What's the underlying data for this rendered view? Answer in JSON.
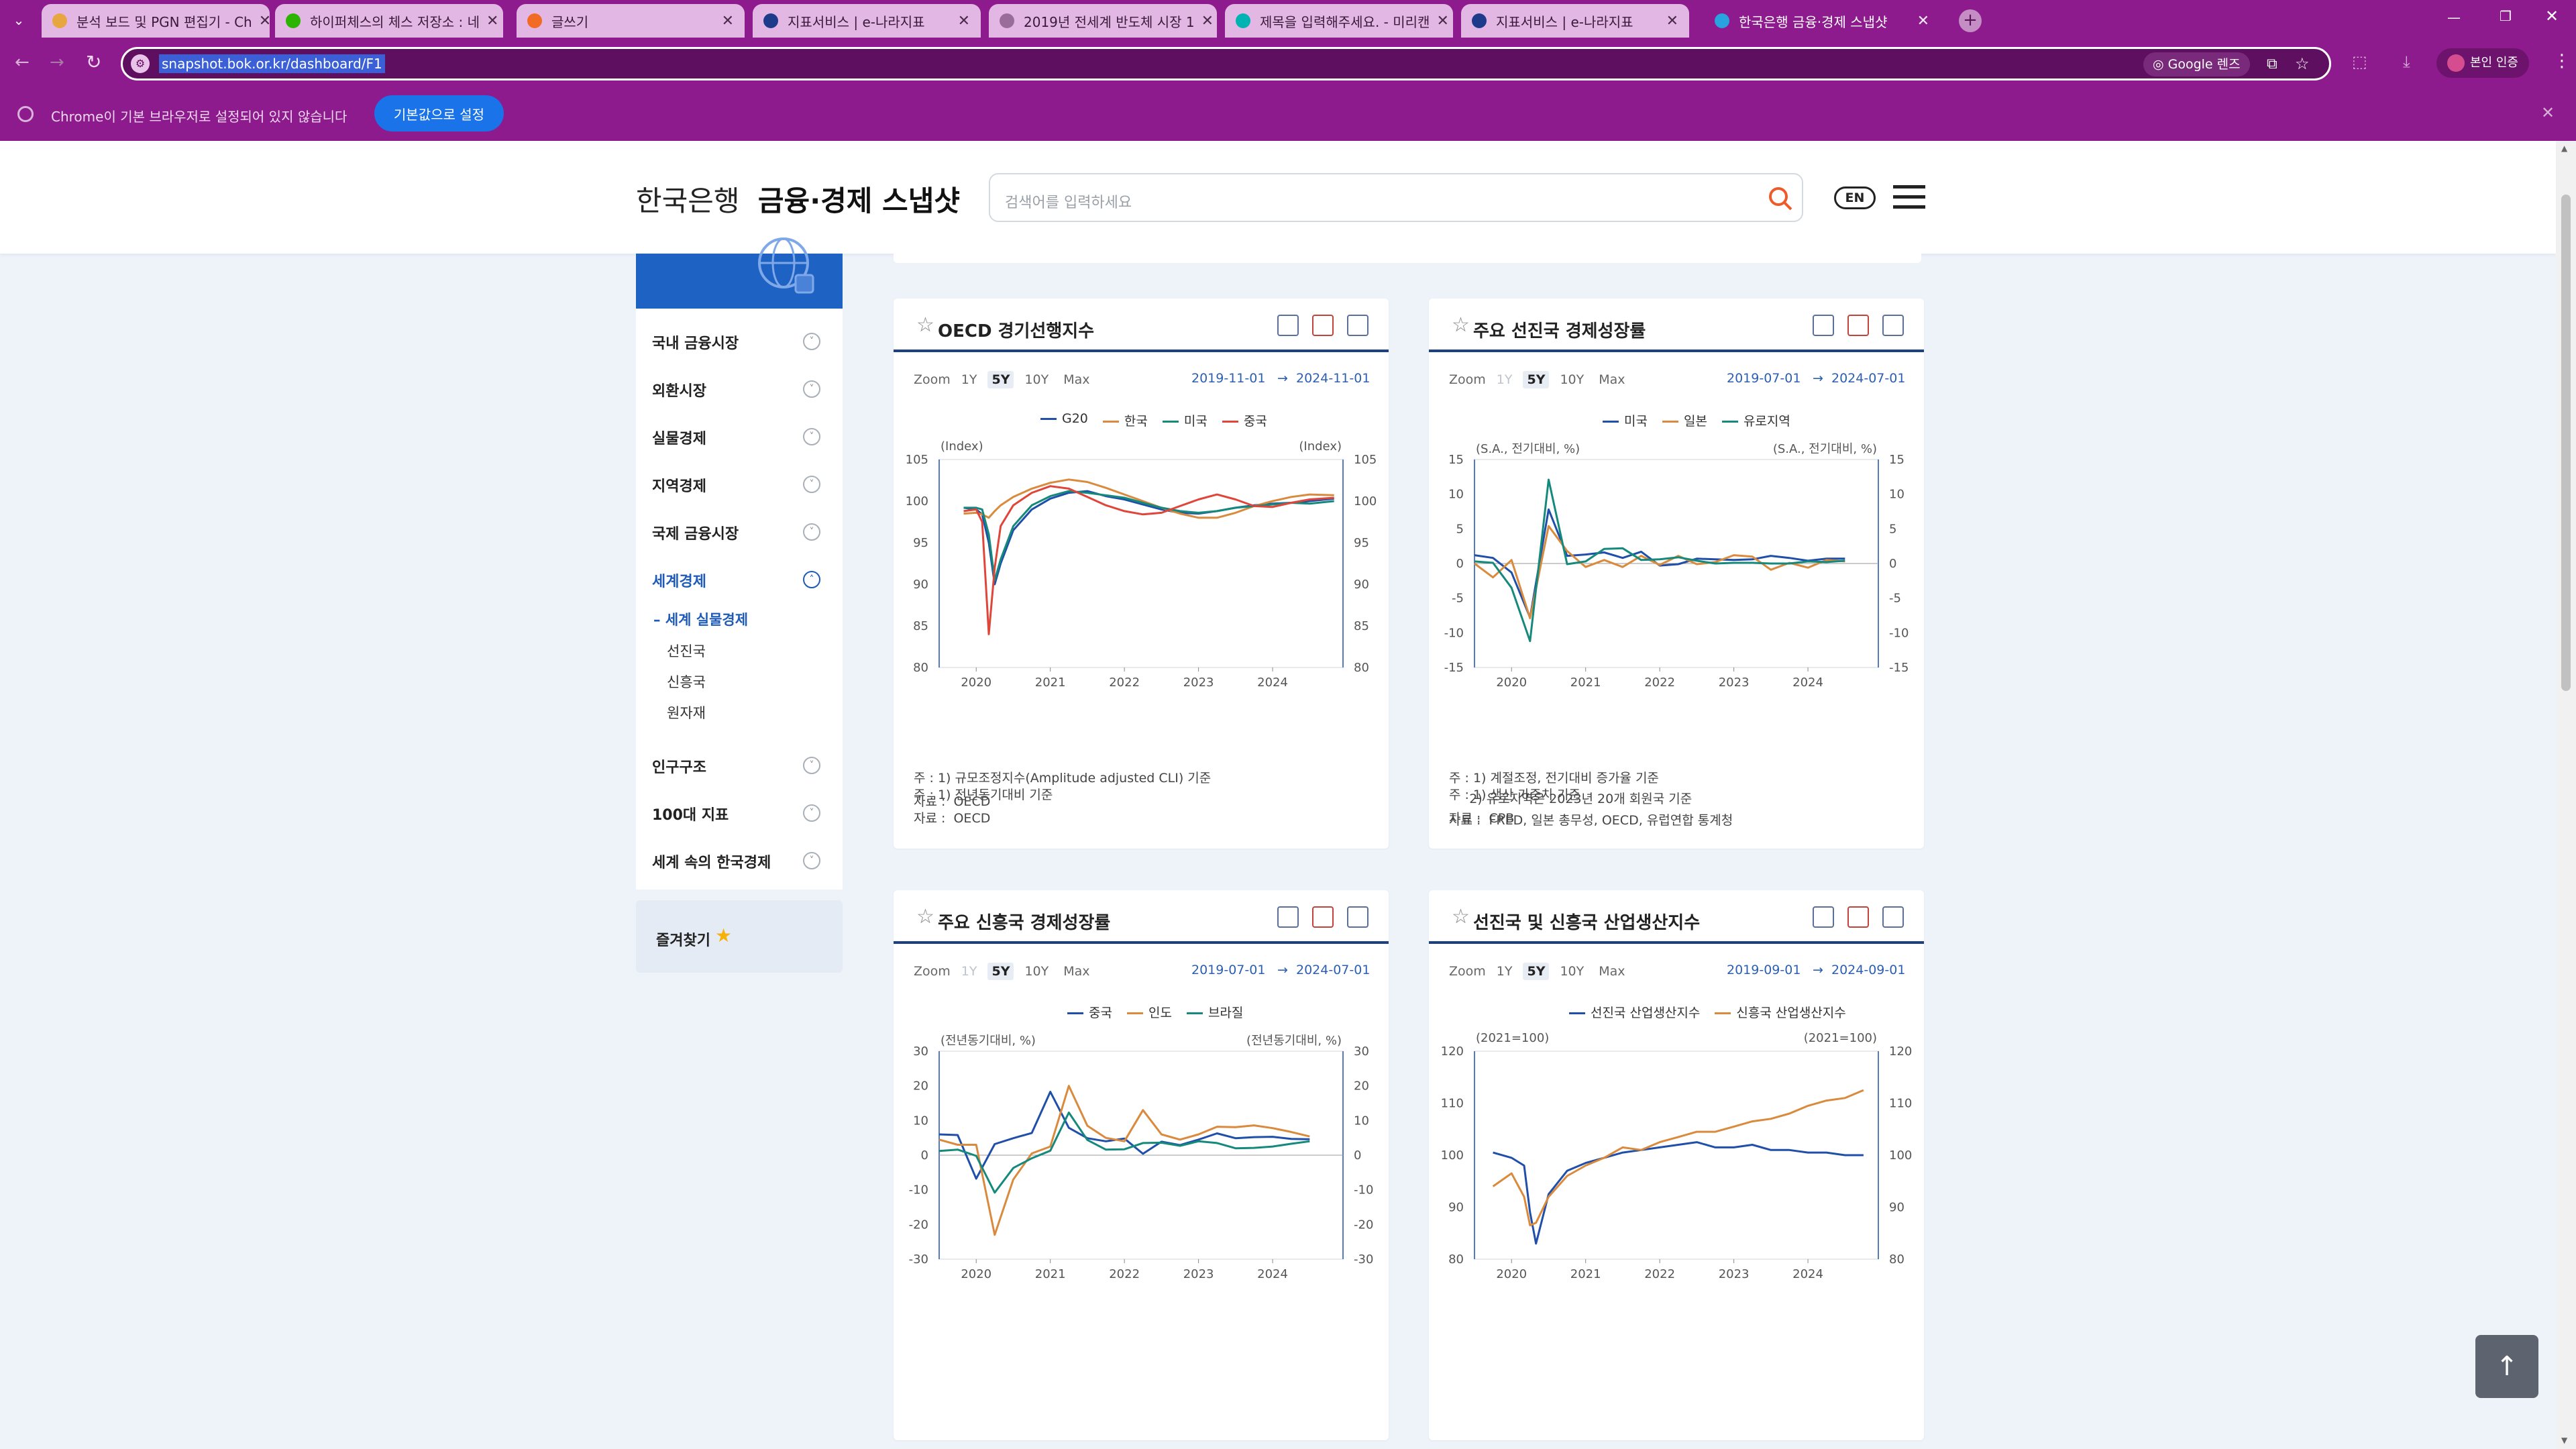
{
  "browser": {
    "tabs": [
      {
        "title": "분석 보드 및 PGN 편집기 - Ch",
        "favicon_color": "#e8a640"
      },
      {
        "title": "하이퍼체스의 체스 저장소 : 네",
        "favicon_color": "#2db400"
      },
      {
        "title": "글쓰기",
        "favicon_color": "#f26b24"
      },
      {
        "title": "지표서비스 | e-나라지표",
        "favicon_color": "#1e3a8a"
      },
      {
        "title": "2019년 전세계 반도체 시장 1",
        "favicon_color": "#9a6c9a"
      },
      {
        "title": "제목을 입력해주세요. - 미리캔",
        "favicon_color": "#00b3b3"
      },
      {
        "title": "지표서비스 | e-나라지표",
        "favicon_color": "#1e3a8a"
      },
      {
        "title": "한국은행 금융·경제 스냅샷",
        "favicon_color": "#29a3e0"
      }
    ],
    "url": "snapshot.bok.or.kr/dashboard/F1",
    "lens_label": "Google 렌즈",
    "profile_label": "본인 인증",
    "infobar_text": "Chrome이 기본 브라우저로 설정되어 있지 않습니다",
    "infobar_button": "기본값으로 설정"
  },
  "site": {
    "logo_light": "한국은행",
    "logo_bold": "금융·경제 스냅샷",
    "search_placeholder": "검색어를 입력하세요",
    "lang": "EN"
  },
  "sidebar": {
    "items": [
      {
        "label": "국내 금융시장"
      },
      {
        "label": "외환시장"
      },
      {
        "label": "실물경제"
      },
      {
        "label": "지역경제"
      },
      {
        "label": "국제 금융시장"
      },
      {
        "label": "세계경제",
        "active": true
      },
      {
        "label": "인구구조"
      },
      {
        "label": "100대 지표"
      },
      {
        "label": "세계 속의 한국경제"
      }
    ],
    "sub_header": "세계 실물경제",
    "sub_items": [
      "선진국",
      "신흥국",
      "원자재"
    ],
    "favorites": "즐겨찾기"
  },
  "cards": [
    {
      "title": "OECD 경기선행지수",
      "zoom_label": "Zoom",
      "zoom": [
        "1Y",
        "5Y",
        "10Y",
        "Max"
      ],
      "zoom_selected": "5Y",
      "date_from": "2019-11-01",
      "date_to": "2024-11-01",
      "unit_left": "(Index)",
      "unit_right": "(Index)",
      "notes": [
        "주 : 1) 규모조정지수(Amplitude adjusted CLI) 기준",
        "자료 :  OECD"
      ]
    },
    {
      "title": "주요 선진국 경제성장률",
      "zoom_label": "Zoom",
      "zoom": [
        "1Y",
        "5Y",
        "10Y",
        "Max"
      ],
      "zoom_selected": "5Y",
      "zoom_disabled": "1Y",
      "date_from": "2019-07-01",
      "date_to": "2024-07-01",
      "unit_left": "(S.A., 전기대비, %)",
      "unit_right": "(S.A., 전기대비, %)",
      "notes": [
        "주 : 1) 계절조정, 전기대비 증가율 기준",
        "     2) 유로지역은 2023년 20개 회원국 기준",
        "자료 :  FRED, 일본 총무성, OECD, 유럽연합 통계청"
      ]
    },
    {
      "title": "주요 신흥국 경제성장률",
      "zoom_label": "Zoom",
      "zoom": [
        "1Y",
        "5Y",
        "10Y",
        "Max"
      ],
      "zoom_selected": "5Y",
      "zoom_disabled": "1Y",
      "date_from": "2019-07-01",
      "date_to": "2024-07-01",
      "unit_left": "(전년동기대비, %)",
      "unit_right": "(전년동기대비, %)",
      "notes": [
        "주 : 1) 전년동기대비 기준",
        "자료 :  OECD"
      ]
    },
    {
      "title": "선진국 및 신흥국 산업생산지수",
      "zoom_label": "Zoom",
      "zoom": [
        "1Y",
        "5Y",
        "10Y",
        "Max"
      ],
      "zoom_selected": "5Y",
      "date_from": "2019-09-01",
      "date_to": "2024-09-01",
      "unit_left": "(2021=100)",
      "unit_right": "(2021=100)",
      "notes": [
        "주 : 1) 생산 가중치 기준",
        "자료 :  CPB"
      ]
    }
  ],
  "chart_data": [
    {
      "type": "line",
      "title": "OECD 경기선행지수",
      "x": [
        2019.83,
        2020.0,
        2020.08,
        2020.17,
        2020.25,
        2020.33,
        2020.5,
        2020.75,
        2021.0,
        2021.25,
        2021.5,
        2021.75,
        2022.0,
        2022.25,
        2022.5,
        2022.75,
        2023.0,
        2023.25,
        2023.5,
        2023.75,
        2024.0,
        2024.25,
        2024.5,
        2024.83
      ],
      "ylim": [
        80,
        105
      ],
      "yticks": [
        80,
        85,
        90,
        95,
        100,
        105
      ],
      "xticks": [
        "2020",
        "2021",
        "2022",
        "2023",
        "2024"
      ],
      "series": [
        {
          "name": "G20",
          "color": "#1f4fa8",
          "values": [
            99.2,
            99.0,
            98.4,
            95.0,
            90.0,
            92.5,
            96.5,
            99.0,
            100.3,
            101.0,
            101.2,
            100.6,
            100.2,
            99.6,
            99.0,
            98.6,
            98.5,
            98.8,
            99.2,
            99.5,
            99.7,
            99.8,
            100.0,
            100.3
          ]
        },
        {
          "name": "한국",
          "color": "#d98a3d",
          "values": [
            98.5,
            98.6,
            98.4,
            98.0,
            98.8,
            99.5,
            100.5,
            101.5,
            102.2,
            102.6,
            102.3,
            101.6,
            100.8,
            100.0,
            99.2,
            98.5,
            98.0,
            98.0,
            98.6,
            99.4,
            100.0,
            100.5,
            100.8,
            100.7
          ]
        },
        {
          "name": "미국",
          "color": "#15897b",
          "values": [
            99.2,
            99.2,
            99.0,
            96.0,
            90.5,
            93.0,
            97.0,
            99.5,
            100.6,
            101.2,
            101.0,
            100.7,
            100.4,
            99.8,
            99.2,
            98.8,
            98.6,
            98.8,
            99.2,
            99.4,
            99.6,
            99.8,
            99.7,
            100.0
          ]
        },
        {
          "name": "중국",
          "color": "#e0453a",
          "values": [
            98.8,
            99.0,
            97.5,
            84.0,
            92.0,
            97.0,
            99.5,
            101.0,
            101.8,
            101.5,
            100.5,
            99.5,
            98.8,
            98.4,
            98.6,
            99.4,
            100.2,
            100.8,
            100.2,
            99.4,
            99.3,
            99.8,
            100.2,
            100.4
          ]
        }
      ]
    },
    {
      "type": "line",
      "title": "주요 선진국 경제성장률",
      "x": [
        2019.5,
        2019.75,
        2020.0,
        2020.25,
        2020.5,
        2020.75,
        2021.0,
        2021.25,
        2021.5,
        2021.75,
        2022.0,
        2022.25,
        2022.5,
        2022.75,
        2023.0,
        2023.25,
        2023.5,
        2023.75,
        2024.0,
        2024.25,
        2024.5
      ],
      "ylim": [
        -15,
        15
      ],
      "yticks": [
        -15,
        -10,
        -5,
        0,
        5,
        10,
        15
      ],
      "xticks": [
        "2020",
        "2021",
        "2022",
        "2023",
        "2024"
      ],
      "series": [
        {
          "name": "미국",
          "color": "#1f4fa8",
          "values": [
            1.2,
            0.8,
            -1.3,
            -7.8,
            7.8,
            1.1,
            1.3,
            1.6,
            0.8,
            1.7,
            -0.3,
            -0.1,
            0.7,
            0.6,
            0.5,
            0.6,
            1.1,
            0.8,
            0.4,
            0.7,
            0.7
          ]
        },
        {
          "name": "일본",
          "color": "#d98a3d",
          "values": [
            0.0,
            -2.0,
            0.5,
            -7.9,
            5.4,
            1.8,
            -0.5,
            0.5,
            -0.5,
            1.1,
            -0.2,
            1.1,
            -0.1,
            0.2,
            1.2,
            1.0,
            -0.9,
            0.1,
            -0.6,
            0.5,
            0.3
          ]
        },
        {
          "name": "유로지역",
          "color": "#15897b",
          "values": [
            0.3,
            0.1,
            -3.5,
            -11.2,
            12.1,
            -0.1,
            0.3,
            2.1,
            2.2,
            0.5,
            0.6,
            0.9,
            0.4,
            0.0,
            0.1,
            0.1,
            0.0,
            0.0,
            0.3,
            0.2,
            0.4
          ]
        }
      ]
    },
    {
      "type": "line",
      "title": "주요 신흥국 경제성장률",
      "x": [
        2019.5,
        2019.75,
        2020.0,
        2020.25,
        2020.5,
        2020.75,
        2021.0,
        2021.25,
        2021.5,
        2021.75,
        2022.0,
        2022.25,
        2022.5,
        2022.75,
        2023.0,
        2023.25,
        2023.5,
        2023.75,
        2024.0,
        2024.25,
        2024.5
      ],
      "ylim": [
        -30,
        30
      ],
      "yticks": [
        -30,
        -20,
        -10,
        0,
        10,
        20,
        30
      ],
      "xticks": [
        "2020",
        "2021",
        "2022",
        "2023",
        "2024"
      ],
      "series": [
        {
          "name": "중국",
          "color": "#1f4fa8",
          "values": [
            6.0,
            5.8,
            -6.8,
            3.2,
            4.9,
            6.4,
            18.3,
            7.9,
            4.9,
            4.0,
            4.8,
            0.4,
            3.9,
            2.9,
            4.5,
            6.3,
            4.9,
            5.2,
            5.3,
            4.7,
            4.6
          ]
        },
        {
          "name": "인도",
          "color": "#d98a3d",
          "values": [
            4.5,
            3.0,
            3.0,
            -23.0,
            -7.0,
            0.5,
            2.5,
            20.0,
            8.5,
            5.0,
            4.0,
            13.0,
            6.0,
            4.5,
            6.0,
            8.2,
            8.1,
            8.6,
            7.8,
            6.7,
            5.4
          ]
        },
        {
          "name": "브라질",
          "color": "#15897b",
          "values": [
            1.2,
            1.6,
            -0.2,
            -10.8,
            -3.7,
            -0.9,
            1.3,
            12.3,
            4.4,
            1.6,
            1.7,
            3.5,
            3.6,
            2.7,
            4.0,
            3.5,
            2.0,
            2.1,
            2.5,
            3.3,
            4.0
          ]
        }
      ]
    },
    {
      "type": "line",
      "title": "선진국 및 신흥국 산업생산지수",
      "x": [
        2019.75,
        2020.0,
        2020.17,
        2020.25,
        2020.33,
        2020.5,
        2020.75,
        2021.0,
        2021.25,
        2021.5,
        2021.75,
        2022.0,
        2022.25,
        2022.5,
        2022.75,
        2023.0,
        2023.25,
        2023.5,
        2023.75,
        2024.0,
        2024.25,
        2024.5,
        2024.75
      ],
      "ylim": [
        80,
        120
      ],
      "yticks": [
        80,
        90,
        100,
        110,
        120
      ],
      "xticks": [
        "2020",
        "2021",
        "2022",
        "2023",
        "2024"
      ],
      "series": [
        {
          "name": "선진국 산업생산지수",
          "color": "#1f4fa8",
          "values": [
            100.5,
            99.5,
            98.0,
            89.0,
            83.0,
            92.5,
            97.0,
            98.5,
            99.5,
            100.5,
            101.0,
            101.5,
            102.0,
            102.5,
            101.5,
            101.5,
            102.0,
            101.0,
            101.0,
            100.5,
            100.5,
            100.0,
            100.0
          ]
        },
        {
          "name": "신흥국 산업생산지수",
          "color": "#d98a3d",
          "values": [
            94.0,
            96.5,
            92.0,
            86.5,
            87.0,
            92.0,
            96.0,
            98.0,
            99.5,
            101.5,
            101.0,
            102.5,
            103.5,
            104.5,
            104.5,
            105.5,
            106.5,
            107.0,
            108.0,
            109.5,
            110.5,
            111.0,
            112.5
          ]
        }
      ]
    }
  ]
}
